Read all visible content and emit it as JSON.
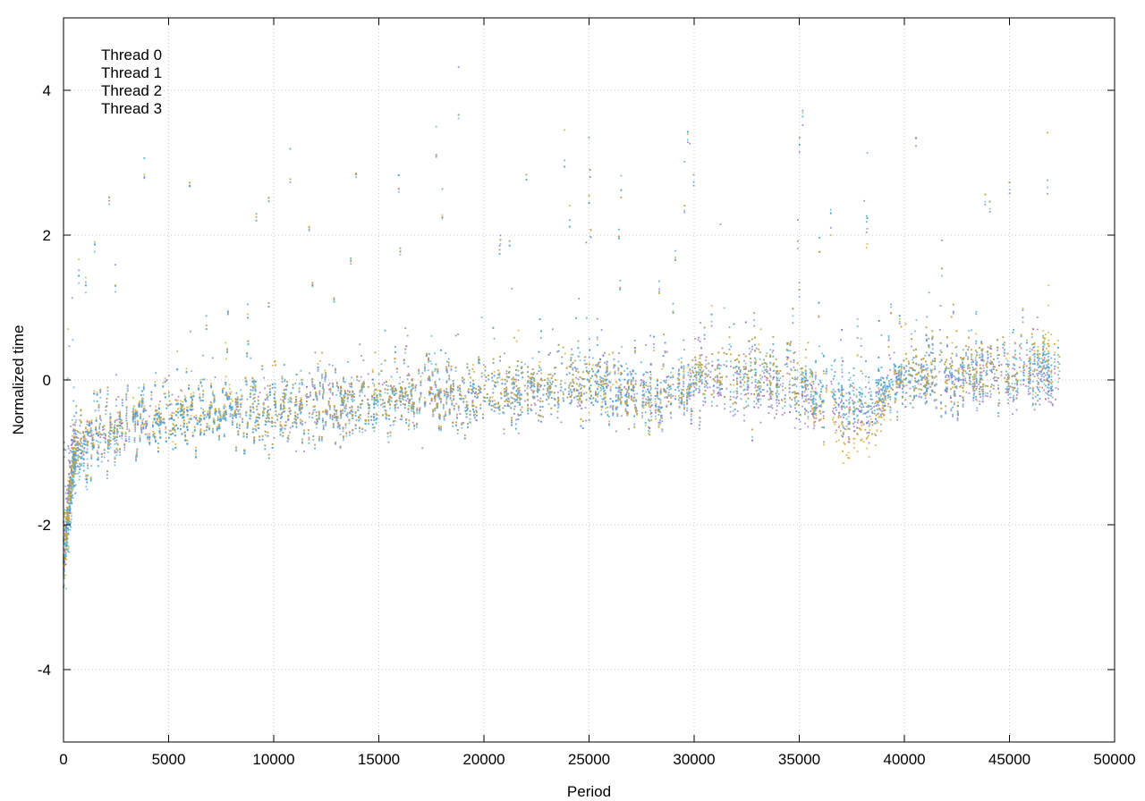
{
  "chart_data": {
    "type": "scatter",
    "title": "",
    "xlabel": "Period",
    "ylabel": "Normalized time",
    "xlim": [
      0,
      50000
    ],
    "ylim": [
      -5,
      5
    ],
    "xticks": [
      0,
      5000,
      10000,
      15000,
      20000,
      25000,
      30000,
      35000,
      40000,
      45000,
      50000
    ],
    "yticks": [
      -4,
      -2,
      0,
      2,
      4
    ],
    "grid": true,
    "legend_position": "top-left",
    "x_data_range": [
      0,
      47400
    ],
    "series": [
      {
        "name": "Thread 0",
        "color": "#9467bd",
        "marker": "dot",
        "baseline": [
          [
            0,
            -2.4
          ],
          [
            500,
            -1.0
          ],
          [
            2000,
            -0.75
          ],
          [
            5000,
            -0.5
          ],
          [
            10000,
            -0.45
          ],
          [
            15000,
            -0.3
          ],
          [
            20000,
            -0.25
          ],
          [
            25000,
            -0.1
          ],
          [
            28000,
            -0.3
          ],
          [
            30000,
            -0.05
          ],
          [
            35000,
            -0.2
          ],
          [
            37000,
            -0.5
          ],
          [
            38000,
            -0.55
          ],
          [
            40000,
            0.0
          ],
          [
            45000,
            -0.05
          ],
          [
            47400,
            0.0
          ]
        ]
      },
      {
        "name": "Thread 1",
        "color": "#3a9ad9",
        "marker": "dot",
        "baseline": [
          [
            0,
            -2.5
          ],
          [
            500,
            -1.1
          ],
          [
            2000,
            -0.7
          ],
          [
            5000,
            -0.5
          ],
          [
            10000,
            -0.4
          ],
          [
            15000,
            -0.3
          ],
          [
            20000,
            -0.2
          ],
          [
            25000,
            0.0
          ],
          [
            28000,
            -0.2
          ],
          [
            30000,
            0.1
          ],
          [
            35000,
            0.0
          ],
          [
            37000,
            -0.3
          ],
          [
            38000,
            -0.4
          ],
          [
            40000,
            0.1
          ],
          [
            45000,
            0.1
          ],
          [
            47400,
            0.2
          ]
        ]
      },
      {
        "name": "Thread 2",
        "color": "#4fb3c8",
        "marker": "dot",
        "baseline": [
          [
            0,
            -2.6
          ],
          [
            500,
            -1.2
          ],
          [
            2000,
            -0.8
          ],
          [
            5000,
            -0.5
          ],
          [
            10000,
            -0.45
          ],
          [
            15000,
            -0.35
          ],
          [
            20000,
            -0.25
          ],
          [
            25000,
            -0.1
          ],
          [
            28000,
            -0.35
          ],
          [
            30000,
            0.0
          ],
          [
            35000,
            -0.1
          ],
          [
            37000,
            -0.2
          ],
          [
            38000,
            -0.3
          ],
          [
            40000,
            0.0
          ],
          [
            45000,
            0.0
          ],
          [
            47400,
            0.1
          ]
        ]
      },
      {
        "name": "Thread 3",
        "color": "#d4a62a",
        "marker": "dot",
        "baseline": [
          [
            0,
            -2.5
          ],
          [
            500,
            -1.0
          ],
          [
            2000,
            -0.7
          ],
          [
            5000,
            -0.45
          ],
          [
            10000,
            -0.4
          ],
          [
            15000,
            -0.3
          ],
          [
            20000,
            -0.2
          ],
          [
            25000,
            0.0
          ],
          [
            28000,
            -0.4
          ],
          [
            30000,
            0.1
          ],
          [
            35000,
            0.0
          ],
          [
            37000,
            -0.7
          ],
          [
            38000,
            -0.8
          ],
          [
            40000,
            0.1
          ],
          [
            45000,
            0.1
          ],
          [
            47400,
            0.3
          ]
        ]
      }
    ]
  }
}
